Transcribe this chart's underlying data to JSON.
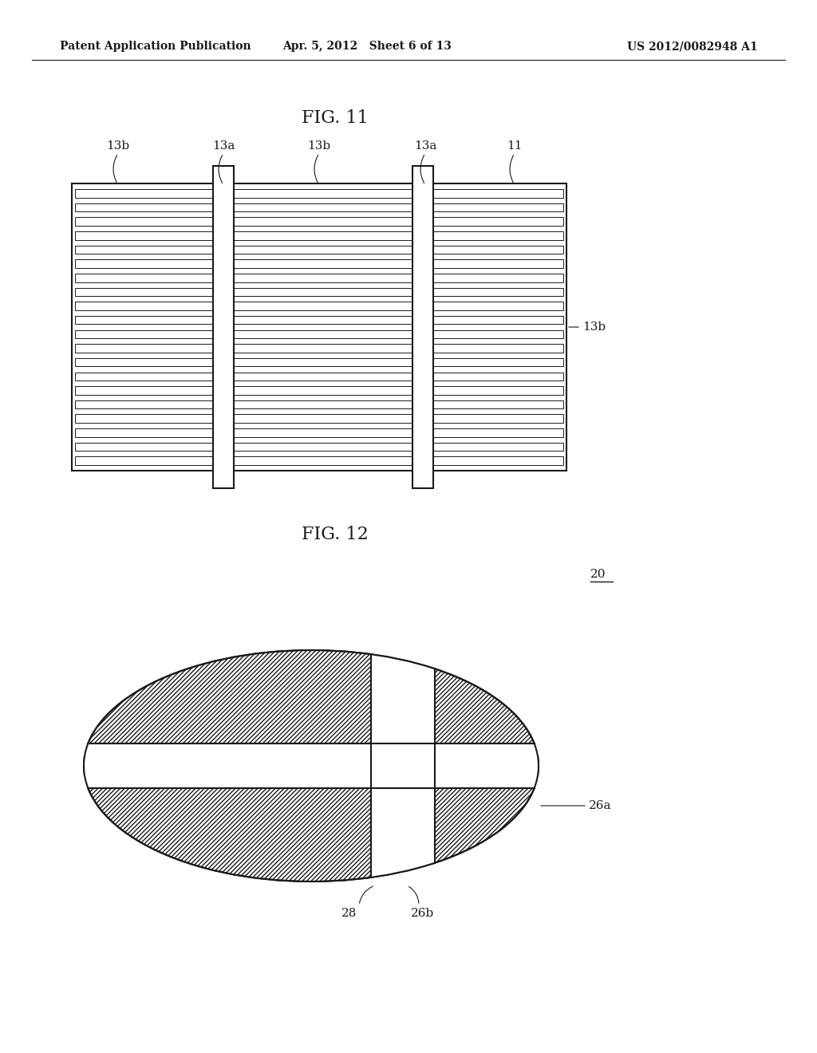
{
  "bg_color": "#ffffff",
  "header_left": "Patent Application Publication",
  "header_mid": "Apr. 5, 2012   Sheet 6 of 13",
  "header_right": "US 2012/0082948 A1",
  "fig11_title": "FIG. 11",
  "fig12_title": "FIG. 12",
  "line_color": "#1a1a1a"
}
